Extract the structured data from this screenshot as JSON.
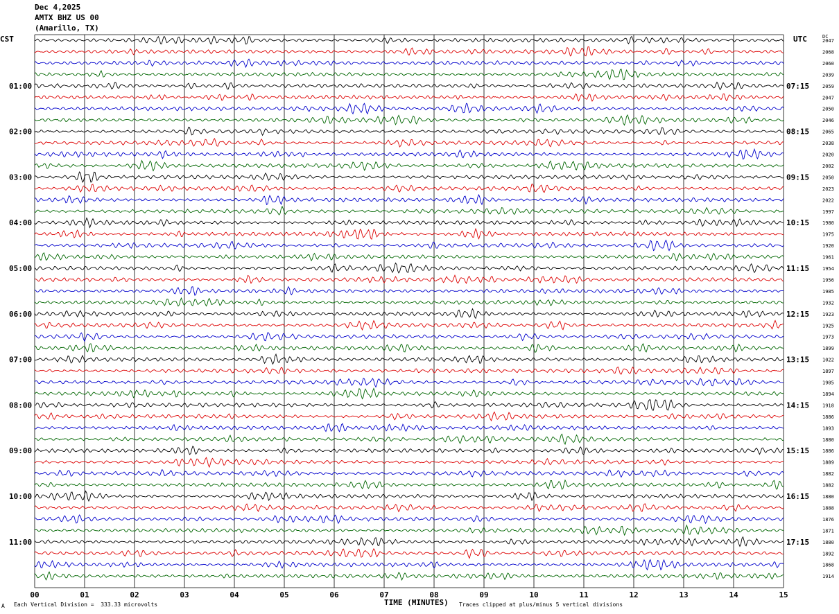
{
  "header": {
    "date": "Dec 4,2025",
    "station": "AMTX BHZ US 00",
    "location": "(Amarillo, TX)"
  },
  "axes": {
    "left_label": "CST",
    "right_label": "UTC",
    "dc_label": "DC",
    "xlabel": "TIME (MINUTES)"
  },
  "footer": {
    "scale": "Each Vertical Division =  333.33 microvolts",
    "clip": "Traces clipped at plus/minus 5 vertical divisions",
    "corner_mark": "A"
  },
  "colors": {
    "trace_cycle": [
      "#000000",
      "#dd0000",
      "#0000cc",
      "#006600"
    ],
    "grid": "#000000",
    "background": "#ffffff"
  },
  "chart_data": {
    "type": "line",
    "title": "AMTX BHZ US 00",
    "xlabel": "TIME (MINUTES)",
    "xlim": [
      0,
      15
    ],
    "x_ticks": [
      "00",
      "01",
      "02",
      "03",
      "04",
      "05",
      "06",
      "07",
      "08",
      "09",
      "10",
      "11",
      "12",
      "13",
      "14",
      "15"
    ],
    "grid": true,
    "trace_interval_minutes": 15,
    "trace_count": 48,
    "left_hour_labels": [
      "01:00",
      "02:00",
      "03:00",
      "04:00",
      "05:00",
      "06:00",
      "07:00",
      "08:00",
      "09:00",
      "10:00",
      "11:00"
    ],
    "right_hour_labels": [
      "07:15",
      "08:15",
      "09:15",
      "10:15",
      "11:15",
      "12:15",
      "13:15",
      "14:15",
      "15:15",
      "16:15",
      "17:15"
    ],
    "hour_label_trace_index": [
      4,
      8,
      12,
      16,
      20,
      24,
      28,
      32,
      36,
      40,
      44
    ],
    "dc_offsets": [
      "2047",
      "2068",
      "2060",
      "2039",
      "2059",
      "2047",
      "2050",
      "2046",
      "2065",
      "2038",
      "2020",
      "2002",
      "2050",
      "2023",
      "2022",
      "1997",
      "1980",
      "1975",
      "1920",
      "1961",
      "1954",
      "1956",
      "1985",
      "1932",
      "1923",
      "1925",
      "1973",
      "1899",
      "1022",
      "1897",
      "1905",
      "1894",
      "1918",
      "1886",
      "1893",
      "1880",
      "1886",
      "1889",
      "1882",
      "1882",
      "1880",
      "1888",
      "1876",
      "1871",
      "1880",
      "1892",
      "1868",
      "1914"
    ],
    "amplitude_unit": "microvolts per vertical division",
    "microvolts_per_division": 333.33,
    "clip_divisions": 5
  }
}
